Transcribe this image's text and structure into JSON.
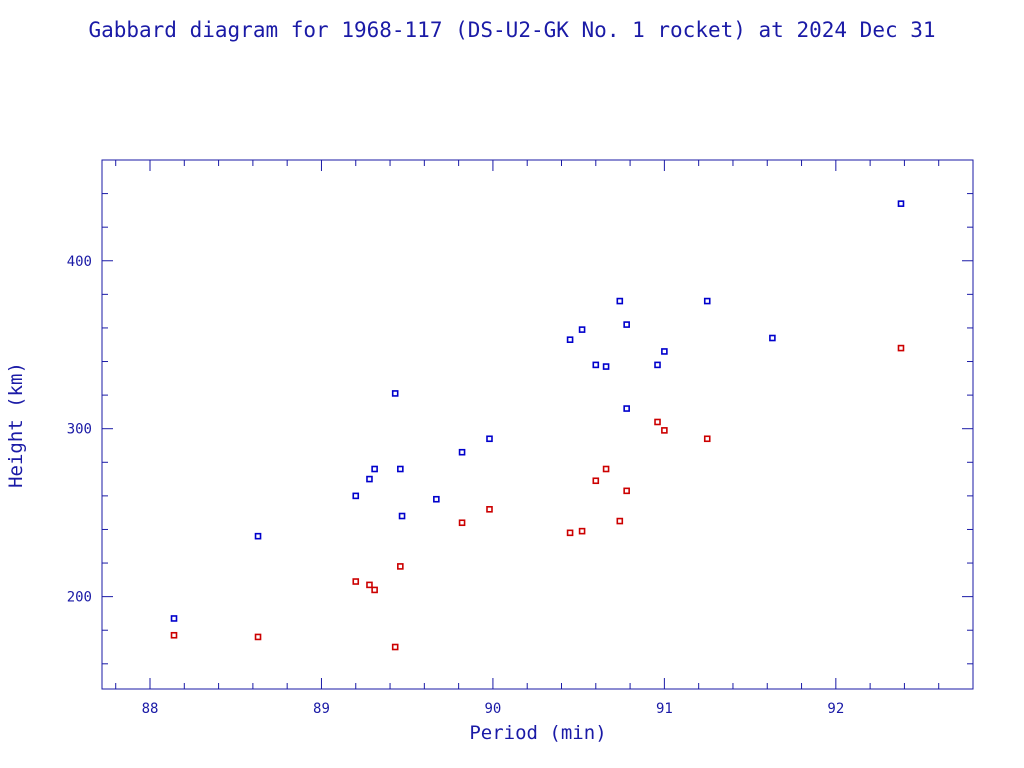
{
  "chart_data": {
    "type": "scatter",
    "title": "Gabbard diagram for 1968-117 (DS-U2-GK No. 1 rocket) at 2024 Dec 31",
    "xlabel": "Period (min)",
    "ylabel": "Height (km)",
    "xlim": [
      87.72,
      92.8
    ],
    "ylim": [
      145,
      460
    ],
    "x_ticks": [
      88,
      89,
      90,
      91,
      92
    ],
    "x_minor_step": 0.2,
    "y_ticks": [
      200,
      300,
      400
    ],
    "y_minor_step": 20,
    "grid": false,
    "legend": "none",
    "colors": {
      "axis": "#1a1aa6",
      "apogee": "#0000cc",
      "perigee": "#cc0000"
    },
    "series": [
      {
        "color": "#0000cc",
        "points": [
          [
            88.14,
            187
          ],
          [
            88.63,
            236
          ],
          [
            89.2,
            260
          ],
          [
            89.28,
            270
          ],
          [
            89.31,
            276
          ],
          [
            89.43,
            321
          ],
          [
            89.46,
            276
          ],
          [
            89.47,
            248
          ],
          [
            89.67,
            258
          ],
          [
            89.82,
            286
          ],
          [
            89.98,
            294
          ],
          [
            90.45,
            353
          ],
          [
            90.52,
            359
          ],
          [
            90.6,
            338
          ],
          [
            90.66,
            337
          ],
          [
            90.74,
            376
          ],
          [
            90.78,
            362
          ],
          [
            90.78,
            312
          ],
          [
            90.96,
            338
          ],
          [
            91.0,
            346
          ],
          [
            91.25,
            376
          ],
          [
            91.63,
            354
          ],
          [
            92.38,
            434
          ]
        ]
      },
      {
        "color": "#cc0000",
        "points": [
          [
            88.14,
            177
          ],
          [
            88.63,
            176
          ],
          [
            89.2,
            209
          ],
          [
            89.28,
            207
          ],
          [
            89.31,
            204
          ],
          [
            89.43,
            170
          ],
          [
            89.46,
            218
          ],
          [
            89.82,
            244
          ],
          [
            89.98,
            252
          ],
          [
            90.45,
            238
          ],
          [
            90.52,
            239
          ],
          [
            90.6,
            269
          ],
          [
            90.66,
            276
          ],
          [
            90.74,
            245
          ],
          [
            90.78,
            263
          ],
          [
            90.96,
            304
          ],
          [
            91.0,
            299
          ],
          [
            91.25,
            294
          ],
          [
            92.38,
            348
          ]
        ]
      }
    ]
  }
}
